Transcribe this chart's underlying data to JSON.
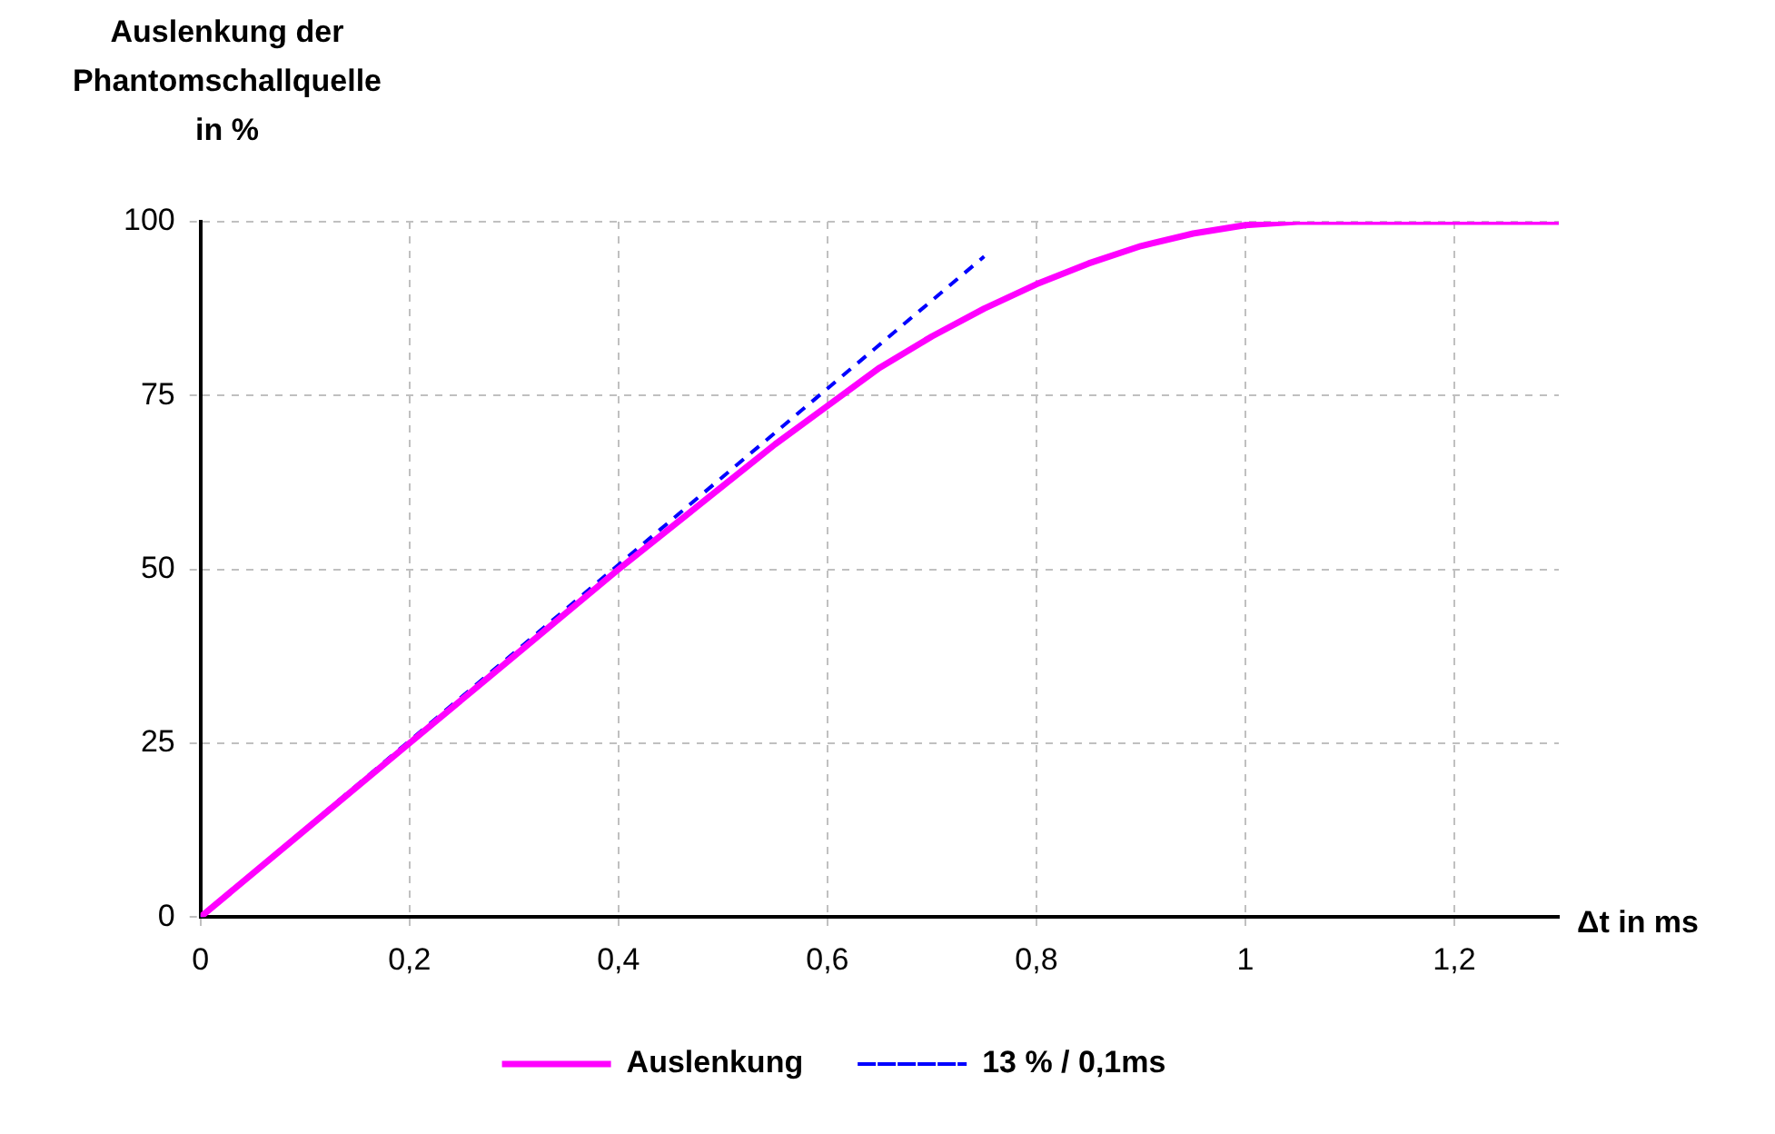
{
  "chart_data": {
    "type": "line",
    "ylabel": "Auslenkung der\nPhantomschallquelle\nin %",
    "xlabel": "Δt in ms",
    "xlim": [
      0,
      1.3
    ],
    "xticks": [
      0,
      {
        "value": 0.2,
        "label": "0,2"
      },
      {
        "value": 0.4,
        "label": "0,4"
      },
      {
        "value": 0.6,
        "label": "0,6"
      },
      {
        "value": 0.8,
        "label": "0,8"
      },
      1,
      {
        "value": 1.2,
        "label": "1,2"
      }
    ],
    "ylim": [
      0,
      100
    ],
    "yticks": [
      0,
      25,
      50,
      75,
      100
    ],
    "grid": true,
    "legend": "bottom",
    "marker": "none",
    "series": [
      {
        "name": "Auslenkung",
        "color": "#ff00ff",
        "line_style": "solid",
        "x": [
          0,
          0.1,
          0.2,
          0.3,
          0.4,
          0.5,
          0.55,
          0.6,
          0.65,
          0.7,
          0.75,
          0.8,
          0.85,
          0.9,
          0.95,
          1.0,
          1.05,
          1.3
        ],
        "values": [
          0,
          12.5,
          25,
          37.5,
          50,
          62,
          68,
          73.5,
          79,
          83.5,
          87.5,
          91,
          94,
          96.5,
          98.3,
          99.5,
          100,
          100
        ]
      },
      {
        "name": "13 % / 0,1ms",
        "color": "#0000ff",
        "line_style": "dashed",
        "x": [
          0,
          0.75
        ],
        "values": [
          0,
          95
        ]
      }
    ]
  }
}
